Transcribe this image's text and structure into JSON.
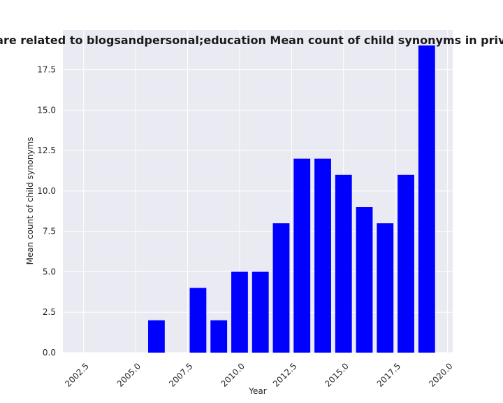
{
  "chart_data": {
    "type": "bar",
    "title": "gories are related to blogsandpersonal;education Mean count of child synonyms in privacy pol",
    "xlabel": "Year",
    "ylabel": "Mean count of child synonyms",
    "x": [
      2006,
      2008,
      2009,
      2010,
      2011,
      2012,
      2013,
      2014,
      2015,
      2016,
      2017,
      2018,
      2019
    ],
    "values": [
      2,
      4,
      2,
      5,
      5,
      8,
      12,
      12,
      11,
      9,
      8,
      11,
      19
    ],
    "xlim": [
      2001.5,
      2020.25
    ],
    "ylim": [
      0,
      19.95
    ],
    "xticks": [
      2002.5,
      2005.0,
      2007.5,
      2010.0,
      2012.5,
      2015.0,
      2017.5,
      2020.0
    ],
    "xtick_labels": [
      "2002.5",
      "2005.0",
      "2007.5",
      "2010.0",
      "2012.5",
      "2015.0",
      "2017.5",
      "2020.0"
    ],
    "yticks": [
      0.0,
      2.5,
      5.0,
      7.5,
      10.0,
      12.5,
      15.0,
      17.5
    ],
    "ytick_labels": [
      "0.0",
      "2.5",
      "5.0",
      "7.5",
      "10.0",
      "12.5",
      "15.0",
      "17.5"
    ],
    "bar_color": "#0000ff",
    "plot_background": "#eaeaf2",
    "grid_color": "#ffffff",
    "grid": true
  }
}
